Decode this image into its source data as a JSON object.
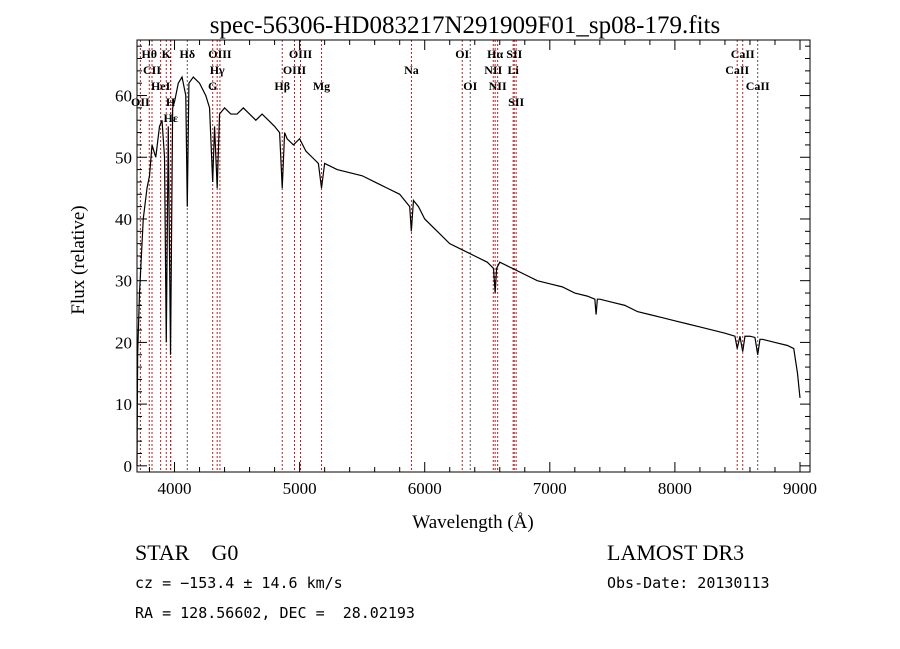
{
  "chart_data": {
    "type": "line",
    "title": "spec-56306-HD083217N291909F01_sp08-179.fits",
    "xlabel": "Wavelength (Å)",
    "ylabel": "Flux (relative)",
    "xlim": [
      3700,
      9080
    ],
    "ylim": [
      -1,
      69
    ],
    "xticks": [
      4000,
      5000,
      6000,
      7000,
      8000,
      9000
    ],
    "yticks": [
      0,
      10,
      20,
      30,
      40,
      50,
      60
    ],
    "grid": false,
    "series": [
      {
        "name": "spectrum",
        "color": "#000000",
        "x": [
          3700,
          3705,
          3720,
          3750,
          3780,
          3800,
          3820,
          3850,
          3880,
          3900,
          3920,
          3934,
          3950,
          3968,
          3985,
          4000,
          4030,
          4060,
          4090,
          4102,
          4115,
          4150,
          4200,
          4250,
          4280,
          4305,
          4320,
          4341,
          4360,
          4400,
          4450,
          4500,
          4550,
          4600,
          4650,
          4700,
          4750,
          4800,
          4840,
          4861,
          4880,
          4900,
          4950,
          5000,
          5050,
          5100,
          5150,
          5175,
          5200,
          5300,
          5400,
          5500,
          5600,
          5700,
          5800,
          5880,
          5893,
          5910,
          5950,
          6000,
          6100,
          6200,
          6300,
          6400,
          6500,
          6550,
          6563,
          6575,
          6600,
          6700,
          6800,
          6900,
          7000,
          7100,
          7200,
          7300,
          7360,
          7370,
          7380,
          7400,
          7500,
          7600,
          7700,
          7800,
          7900,
          8000,
          8100,
          8200,
          8300,
          8400,
          8480,
          8498,
          8520,
          8542,
          8560,
          8600,
          8640,
          8662,
          8680,
          8700,
          8800,
          8900,
          8950,
          8980,
          9000
        ],
        "y": [
          0,
          18,
          28,
          40,
          45,
          47,
          52,
          50,
          55,
          56,
          50,
          20,
          55,
          18,
          58,
          59,
          62,
          63,
          60,
          42,
          62,
          63,
          62,
          60,
          58,
          46,
          55,
          45,
          57,
          58,
          57,
          57,
          58,
          57,
          56,
          57,
          56,
          55,
          54,
          45,
          54,
          53,
          52,
          53,
          51,
          50,
          49,
          45,
          49,
          48,
          47.5,
          47,
          46,
          45,
          44,
          42,
          38,
          43,
          42,
          40,
          38,
          36,
          35,
          34,
          33,
          32,
          28,
          32,
          33,
          32,
          31,
          30,
          29.5,
          29,
          28,
          27.5,
          27,
          24.5,
          27,
          27,
          26.5,
          26,
          25,
          24.5,
          24,
          23.5,
          23,
          22.5,
          22,
          21.5,
          21,
          19,
          21,
          18.5,
          21,
          21,
          20.8,
          18,
          20.5,
          20.5,
          20,
          19.5,
          19,
          15,
          11
        ]
      }
    ],
    "lines": [
      {
        "w": 3727,
        "label": "OII",
        "row": 3,
        "color": "#b22222"
      },
      {
        "w": 3798,
        "label": "Hθ",
        "row": 1,
        "color": "#b22222"
      },
      {
        "w": 3820,
        "label": "CII",
        "row": 2,
        "color": "#b22222"
      },
      {
        "w": 3889,
        "label": "HeI",
        "row": 2,
        "color": "#b22222"
      },
      {
        "w": 3934,
        "label": "K",
        "row": 1,
        "color": "#b22222"
      },
      {
        "w": 3968,
        "label": "H",
        "row": 3,
        "color": "#b22222"
      },
      {
        "w": 3970,
        "label": "Hε",
        "row": 3,
        "color": "#b22222"
      },
      {
        "w": 4102,
        "label": "Hδ",
        "row": 1,
        "color": "#555555"
      },
      {
        "w": 4305,
        "label": "G",
        "row": 3,
        "color": "#b22222"
      },
      {
        "w": 4341,
        "label": "Hγ",
        "row": 2,
        "color": "#b22222"
      },
      {
        "w": 4363,
        "label": "OIII",
        "row": 1,
        "color": "#b22222"
      },
      {
        "w": 4861,
        "label": "Hβ",
        "row": 3,
        "color": "#b22222"
      },
      {
        "w": 4959,
        "label": "OIII",
        "row": 2,
        "color": "#b22222"
      },
      {
        "w": 5007,
        "label": "OIII",
        "row": 1,
        "color": "#b22222"
      },
      {
        "w": 5175,
        "label": "Mg",
        "row": 3,
        "color": "#b22222"
      },
      {
        "w": 5894,
        "label": "Na",
        "row": 2,
        "color": "#b22222"
      },
      {
        "w": 6300,
        "label": "OI",
        "row": 1,
        "color": "#b22222"
      },
      {
        "w": 6364,
        "label": "OI",
        "row": 3,
        "color": "#555555"
      },
      {
        "w": 6548,
        "label": "NII",
        "row": 2,
        "color": "#b22222"
      },
      {
        "w": 6563,
        "label": "Hα",
        "row": 1,
        "color": "#b22222"
      },
      {
        "w": 6583,
        "label": "NII",
        "row": 3,
        "color": "#b22222"
      },
      {
        "w": 6707,
        "label": "Li",
        "row": 2,
        "color": "#b22222"
      },
      {
        "w": 6716,
        "label": "SII",
        "row": 1,
        "color": "#b22222"
      },
      {
        "w": 6731,
        "label": "SII",
        "row": 3,
        "color": "#b22222"
      },
      {
        "w": 8498,
        "label": "CaII",
        "row": 2,
        "color": "#b22222"
      },
      {
        "w": 8542,
        "label": "CaII",
        "row": 1,
        "color": "#b22222"
      },
      {
        "w": 8662,
        "label": "CaII",
        "row": 3,
        "color": "#555555"
      }
    ]
  },
  "info": {
    "class": "STAR    G0",
    "survey": "LAMOST DR3",
    "cz": "cz = −153.4 ± 14.6 km/s",
    "obs_date": "Obs-Date: 20130113",
    "radec": "RA = 128.56602, DEC =  28.02193"
  }
}
